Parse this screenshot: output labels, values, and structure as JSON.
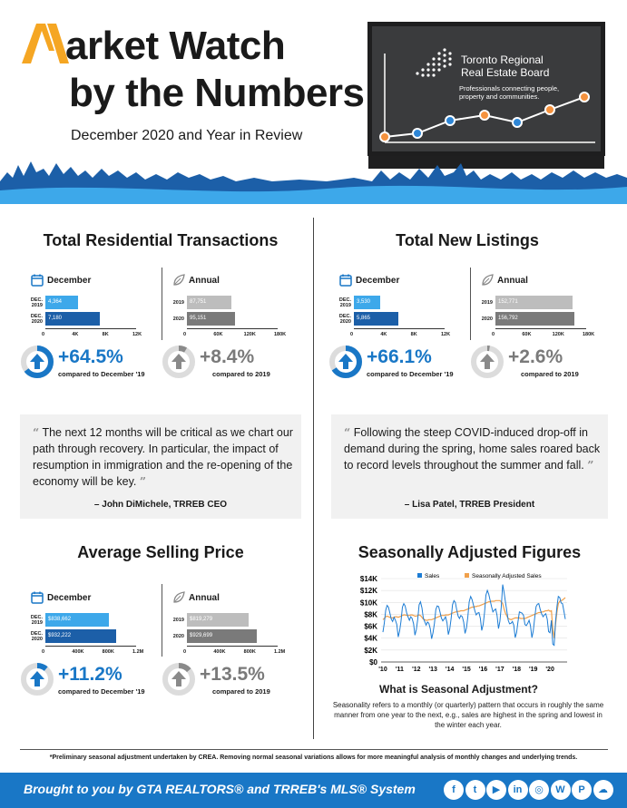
{
  "header": {
    "title_line1": "arket Watch",
    "title_line2": "by the Numbers",
    "subtitle": "December 2020 and Year in Review",
    "logo_letter": "M",
    "board_name_line1": "Toronto Regional",
    "board_name_line2": "Real Estate Board",
    "tagline_line1": "Professionals connecting people,",
    "tagline_line2": "property and communities."
  },
  "colors": {
    "accent_orange": "#f5a623",
    "brand_blue": "#1977c6",
    "dark_blue": "#1c5fa8",
    "light_blue": "#3da8ea",
    "gray_bar": "#bdbdbd",
    "dark_gray_bar": "#7a7a7a"
  },
  "sections": {
    "transactions": {
      "title": "Total Residential Transactions",
      "december": {
        "label": "December",
        "rows": [
          {
            "label_l1": "DEC.",
            "label_l2": "2019",
            "value_text": "4,364",
            "value": 4364
          },
          {
            "label_l1": "DEC.",
            "label_l2": "2020",
            "value_text": "7,180",
            "value": 7180
          }
        ],
        "ticks": [
          "0",
          "4K",
          "8K",
          "12K"
        ],
        "max": 12000,
        "pct": "+64.5%",
        "pct_fill": 0.645,
        "compare": "compared to December '19"
      },
      "annual": {
        "label": "Annual",
        "rows": [
          {
            "label_l1": "2019",
            "label_l2": "",
            "value_text": "87,751",
            "value": 87751
          },
          {
            "label_l1": "2020",
            "label_l2": "",
            "value_text": "95,151",
            "value": 95151
          }
        ],
        "ticks": [
          "0",
          "60K",
          "120K",
          "180K"
        ],
        "max": 180000,
        "pct": "+8.4%",
        "pct_fill": 0.084,
        "compare": "compared to 2019"
      }
    },
    "listings": {
      "title": "Total New Listings",
      "december": {
        "label": "December",
        "rows": [
          {
            "label_l1": "DEC.",
            "label_l2": "2019",
            "value_text": "3,530",
            "value": 3530
          },
          {
            "label_l1": "DEC.",
            "label_l2": "2020",
            "value_text": "5,865",
            "value": 5865
          }
        ],
        "ticks": [
          "0",
          "4K",
          "8K",
          "12K"
        ],
        "max": 12000,
        "pct": "+66.1%",
        "pct_fill": 0.661,
        "compare": "compared to December '19"
      },
      "annual": {
        "label": "Annual",
        "rows": [
          {
            "label_l1": "2019",
            "label_l2": "",
            "value_text": "152,771",
            "value": 152771
          },
          {
            "label_l1": "2020",
            "label_l2": "",
            "value_text": "156,792",
            "value": 156792
          }
        ],
        "ticks": [
          "0",
          "60K",
          "120K",
          "180K"
        ],
        "max": 180000,
        "pct": "+2.6%",
        "pct_fill": 0.026,
        "compare": "compared to 2019"
      }
    },
    "price": {
      "title": "Average Selling Price",
      "december": {
        "label": "December",
        "rows": [
          {
            "label_l1": "DEC.",
            "label_l2": "2019",
            "value_text": "$838,662",
            "value": 838662
          },
          {
            "label_l1": "DEC.",
            "label_l2": "2020",
            "value_text": "$932,222",
            "value": 932222
          }
        ],
        "ticks": [
          "0",
          "400K",
          "800K",
          "1.2M"
        ],
        "max": 1200000,
        "pct": "+11.2%",
        "pct_fill": 0.112,
        "compare": "compared to December '19"
      },
      "annual": {
        "label": "Annual",
        "rows": [
          {
            "label_l1": "2019",
            "label_l2": "",
            "value_text": "$819,279",
            "value": 819279
          },
          {
            "label_l1": "2020",
            "label_l2": "",
            "value_text": "$929,699",
            "value": 929699
          }
        ],
        "ticks": [
          "0",
          "400K",
          "800K",
          "1.2M"
        ],
        "max": 1200000,
        "pct": "+13.5%",
        "pct_fill": 0.135,
        "compare": "compared to 2019"
      }
    }
  },
  "quotes": {
    "ceo": {
      "text": "The next 12 months will be critical as we chart our path through recovery. In particular, the impact of resumption in immigration and the re-opening of the economy will be key.",
      "author": "– John DiMichele, TRREB CEO"
    },
    "president": {
      "text": "Following the steep COVID-induced drop-off in demand during the spring, home sales roared back to record levels throughout the summer and fall.",
      "author": "– Lisa Patel, TRREB President"
    }
  },
  "seasonal": {
    "title": "Seasonally Adjusted Figures",
    "question": "What is Seasonal Adjustment?",
    "explanation": "Seasonality refers to a monthly (or quarterly) pattern that occurs in roughly the same manner from one year to the next, e.g., sales are highest in the spring and lowest in the winter each year."
  },
  "chart_data": {
    "type": "line",
    "title": "",
    "xlabel": "",
    "ylabel": "",
    "y_ticks": [
      "$0",
      "$2K",
      "$4K",
      "$6K",
      "$8K",
      "$10K",
      "$12K",
      "$14K"
    ],
    "x_ticks": [
      "'10",
      "'11",
      "'12",
      "'13",
      "'14",
      "'15",
      "'16",
      "'17",
      "'18",
      "'19",
      "'20"
    ],
    "ylim": [
      0,
      14000
    ],
    "legend": "top",
    "series": [
      {
        "name": "Sales",
        "color": "#1c7cd4",
        "values": [
          5000,
          6500,
          8700,
          9500,
          9200,
          8200,
          7200,
          6800,
          7500,
          7000,
          6300,
          4200,
          5200,
          6800,
          9200,
          9800,
          9400,
          8300,
          7600,
          7000,
          7600,
          7300,
          6400,
          4500,
          5400,
          7200,
          9600,
          10100,
          9100,
          7400,
          6800,
          6200,
          6700,
          6500,
          5600,
          3900,
          4900,
          6500,
          8800,
          9400,
          9300,
          8400,
          7400,
          6900,
          7200,
          7600,
          6600,
          4600,
          5500,
          7300,
          9600,
          10300,
          10000,
          8800,
          7700,
          7300,
          7800,
          7600,
          6700,
          4800,
          5700,
          7600,
          10100,
          11000,
          10500,
          9600,
          8600,
          7900,
          8200,
          8300,
          7300,
          5300,
          6300,
          8300,
          11200,
          12000,
          11400,
          10400,
          9300,
          8400,
          8700,
          8900,
          7800,
          5600,
          6800,
          9200,
          13000,
          11700,
          10100,
          8500,
          7000,
          6400,
          6500,
          6800,
          6200,
          4100,
          4900,
          6700,
          8400,
          8300,
          8200,
          7800,
          6300,
          6100,
          6500,
          7000,
          6100,
          4100,
          5200,
          7300,
          9300,
          9700,
          9800,
          8800,
          8100,
          7600,
          7900,
          8100,
          7200,
          5100,
          4900,
          7000,
          3000,
          2800,
          6900,
          9300,
          11000,
          10800,
          9900,
          9800,
          8500,
          7200
        ]
      },
      {
        "name": "Seasonally Adjusted Sales",
        "color": "#f0a04b",
        "values": [
          7100,
          7300,
          7600,
          7700,
          7600,
          7500,
          7400,
          7400,
          7500,
          7600,
          7600,
          7500,
          7600,
          7700,
          7800,
          7900,
          7900,
          7800,
          7800,
          7800,
          7900,
          7900,
          7800,
          7700,
          7700,
          7800,
          7900,
          7800,
          7500,
          7200,
          7100,
          7000,
          7000,
          7100,
          7100,
          7100,
          7200,
          7300,
          7400,
          7500,
          7600,
          7700,
          7800,
          7800,
          7800,
          7900,
          7900,
          7900,
          8000,
          8100,
          8200,
          8300,
          8400,
          8400,
          8500,
          8500,
          8600,
          8600,
          8600,
          8700,
          8800,
          8900,
          9000,
          9100,
          9200,
          9200,
          9300,
          9300,
          9400,
          9400,
          9500,
          9600,
          9700,
          9800,
          9900,
          10000,
          10100,
          10100,
          10200,
          10200,
          10200,
          10300,
          10300,
          10300,
          10300,
          10100,
          9800,
          8900,
          8200,
          7700,
          7300,
          7200,
          7100,
          7200,
          7300,
          7400,
          7400,
          7400,
          7400,
          7300,
          7300,
          7300,
          7300,
          7400,
          7500,
          7600,
          7700,
          7800,
          7900,
          8000,
          8100,
          8200,
          8300,
          8300,
          8400,
          8400,
          8500,
          8600,
          8600,
          8700,
          8500,
          8600,
          5500,
          4000,
          6400,
          8400,
          9800,
          10200,
          10300,
          10400,
          10600,
          10800
        ]
      }
    ]
  },
  "footer": {
    "footnote": "*Preliminary seasonal adjustment undertaken by CREA. Removing normal seasonal variations allows for more meaningful analysis of monthly changes and underlying trends.",
    "tagline": "Brought to you by GTA REALTORS® and TRREB's MLS® System",
    "social": [
      {
        "icon": "facebook-icon",
        "glyph": "f"
      },
      {
        "icon": "twitter-icon",
        "glyph": "t"
      },
      {
        "icon": "youtube-icon",
        "glyph": "▶"
      },
      {
        "icon": "linkedin-icon",
        "glyph": "in"
      },
      {
        "icon": "instagram-icon",
        "glyph": "◎"
      },
      {
        "icon": "wordpress-icon",
        "glyph": "W"
      },
      {
        "icon": "pinterest-icon",
        "glyph": "P"
      },
      {
        "icon": "soundcloud-icon",
        "glyph": "☁"
      }
    ]
  }
}
